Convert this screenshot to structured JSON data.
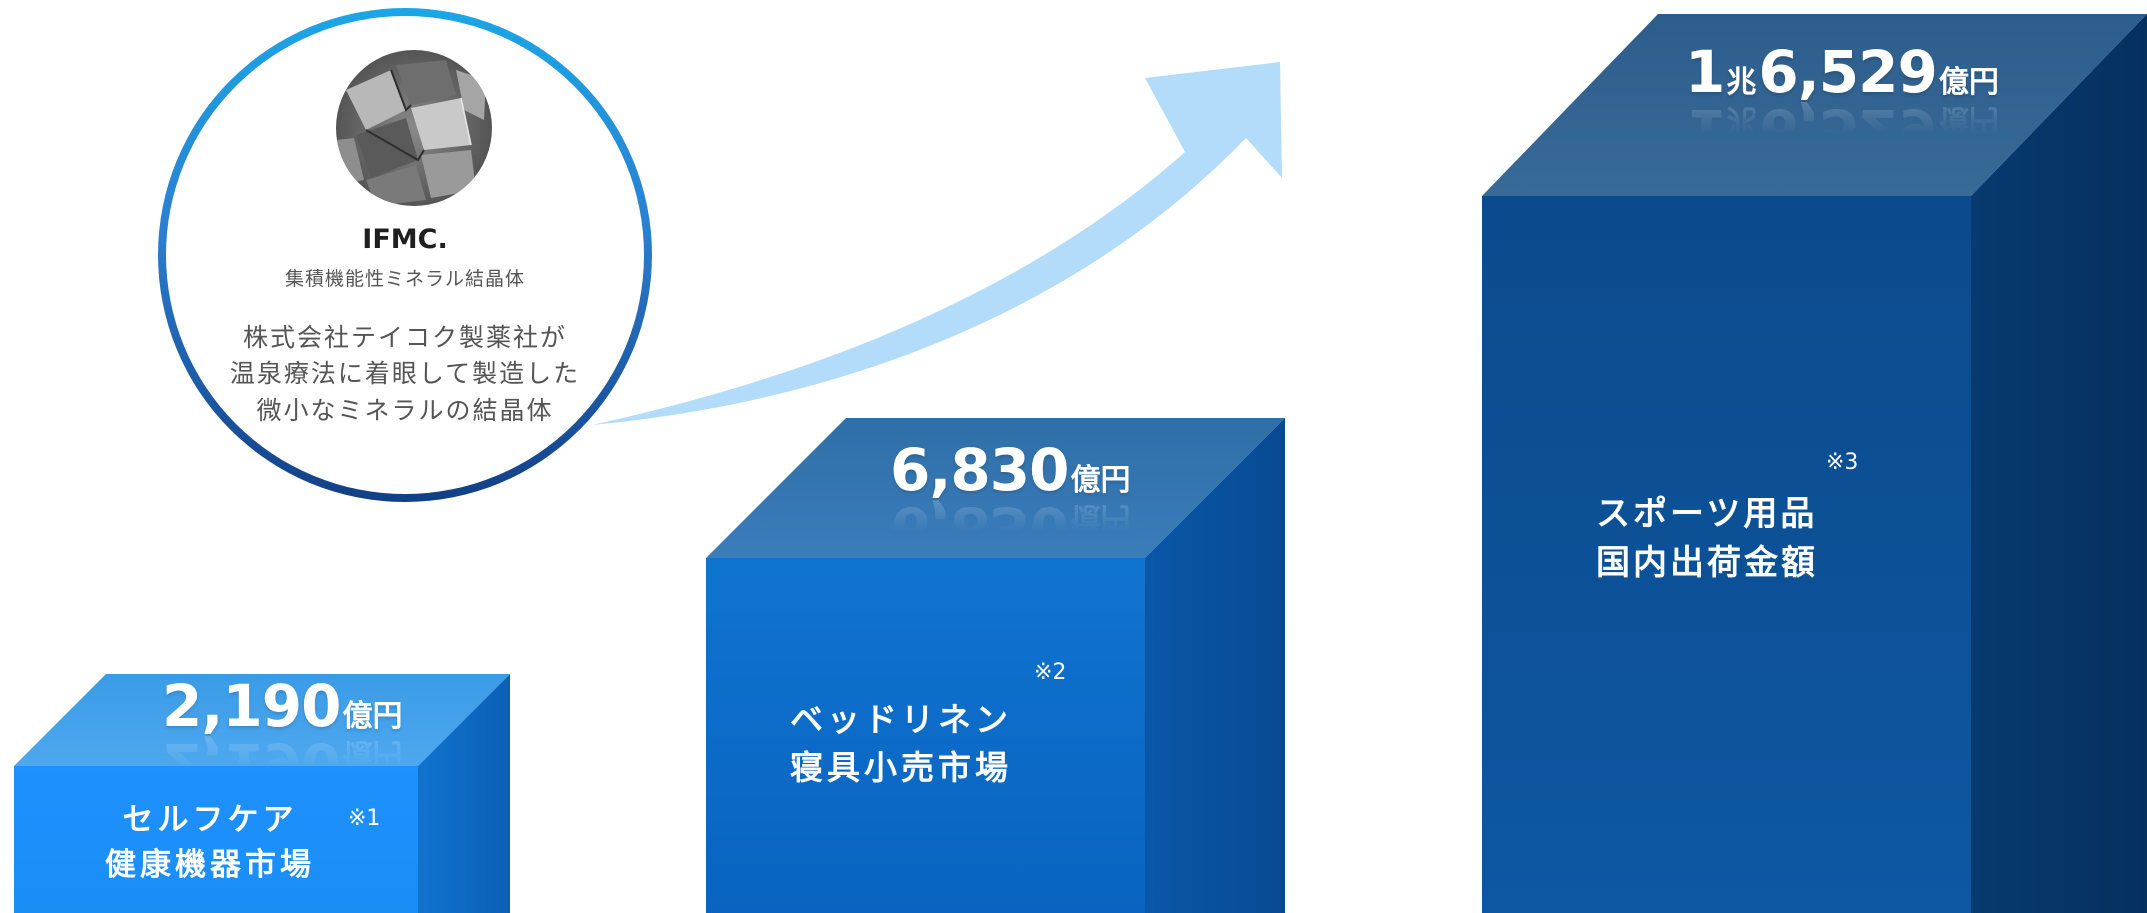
{
  "ifmc": {
    "title": "IFMC.",
    "subtitle": "集積機能性ミネラル結晶体",
    "description": [
      "株式会社テイコク製薬社が",
      "温泉療法に着眼して製造した",
      "微小なミネラルの結晶体"
    ]
  },
  "colors": {
    "circle_ring_top": "#1ba6e6",
    "circle_ring_bottom": "#123f86",
    "arrow": "#b3dcfb",
    "box1_front": "#1e90ff",
    "box2_front": "#0a66c4",
    "box3_front": "#0b4e93"
  },
  "chart_data": {
    "type": "bar",
    "categories": [
      "セルフケア健康機器市場",
      "ベッドリネン寝具小売市場",
      "スポーツ用品国内出荷金額"
    ],
    "values": [
      2190,
      6830,
      16529
    ],
    "unit": "億円",
    "bars": [
      {
        "label_lines": [
          "セルフケア",
          "健康機器市場"
        ],
        "note": "※1",
        "value_parts": {
          "prefix": "",
          "chou": "",
          "num": "2,190",
          "unit": "億円"
        }
      },
      {
        "label_lines": [
          "ベッドリネン",
          "寝具小売市場"
        ],
        "note": "※2",
        "value_parts": {
          "prefix": "",
          "chou": "",
          "num": "6,830",
          "unit": "億円"
        }
      },
      {
        "label_lines": [
          "スポーツ用品",
          "国内出荷金額"
        ],
        "note": "※3",
        "value_parts": {
          "prefix": "1",
          "chou": "兆",
          "num": "6,529",
          "unit": "億円"
        }
      }
    ]
  }
}
